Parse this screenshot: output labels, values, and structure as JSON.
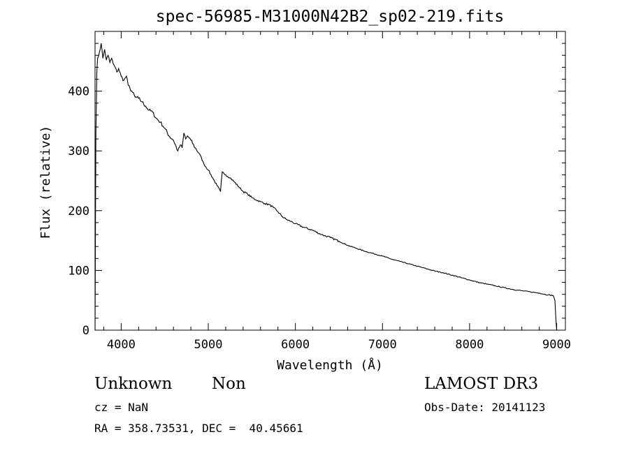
{
  "chart_data": {
    "type": "line",
    "title": "spec-56985-M31000N42B2_sp02-219.fits",
    "xlabel": "Wavelength (Å)",
    "ylabel": "Flux (relative)",
    "xlim": [
      3700,
      9100
    ],
    "ylim": [
      0,
      500
    ],
    "xticks": [
      4000,
      5000,
      6000,
      7000,
      8000,
      9000
    ],
    "yticks": [
      0,
      100,
      200,
      300,
      400
    ],
    "grid": false,
    "series": [
      {
        "x": [
          3700,
          3705,
          3710,
          3720,
          3730,
          3750,
          3770,
          3790,
          3810,
          3830,
          3850,
          3870,
          3890,
          3910,
          3930,
          3950,
          3970,
          4000,
          4030,
          4060,
          4080,
          4100,
          4130,
          4160,
          4200,
          4240,
          4280,
          4320,
          4360,
          4400,
          4450,
          4500,
          4550,
          4600,
          4650,
          4680,
          4700,
          4720,
          4740,
          4760,
          4780,
          4800,
          4850,
          4900,
          4950,
          5000,
          5050,
          5100,
          5140,
          5160,
          5180,
          5200,
          5250,
          5300,
          5350,
          5400,
          5450,
          5500,
          5550,
          5600,
          5650,
          5700,
          5750,
          5800,
          5850,
          5900,
          5950,
          6000,
          6100,
          6200,
          6300,
          6400,
          6500,
          6600,
          6700,
          6800,
          6900,
          7000,
          7100,
          7200,
          7300,
          7400,
          7500,
          7600,
          7700,
          7800,
          7900,
          8000,
          8100,
          8200,
          8300,
          8400,
          8500,
          8600,
          8700,
          8800,
          8900,
          8960,
          8980,
          8990,
          9000
        ],
        "y": [
          0,
          180,
          330,
          430,
          455,
          465,
          480,
          455,
          470,
          452,
          460,
          448,
          455,
          445,
          440,
          432,
          438,
          425,
          418,
          425,
          410,
          405,
          398,
          390,
          388,
          382,
          375,
          368,
          365,
          355,
          348,
          338,
          325,
          318,
          300,
          310,
          305,
          330,
          320,
          325,
          322,
          318,
          305,
          295,
          278,
          268,
          255,
          242,
          232,
          265,
          262,
          260,
          255,
          248,
          240,
          232,
          228,
          222,
          218,
          215,
          212,
          210,
          205,
          198,
          190,
          185,
          182,
          178,
          172,
          167,
          160,
          155,
          149,
          142,
          137,
          132,
          128,
          124,
          119,
          115,
          111,
          107,
          103,
          99,
          96,
          92,
          88,
          84,
          80,
          77,
          74,
          71,
          68,
          66,
          64,
          62,
          59,
          58,
          50,
          20,
          0
        ]
      }
    ]
  },
  "info": {
    "object_class": "Unknown",
    "object_subclass": "Non",
    "survey": "LAMOST DR3",
    "redshift": "cz = NaN",
    "obs_date": "Obs-Date: 20141123",
    "coords": "RA = 358.73531, DEC =  40.45661"
  }
}
